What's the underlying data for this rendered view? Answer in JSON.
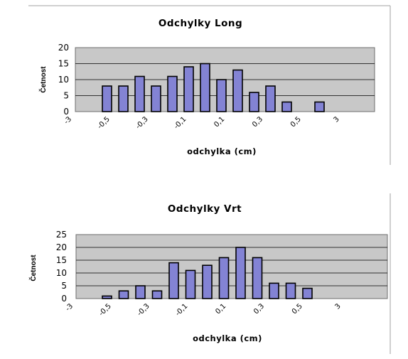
{
  "chart_data": [
    {
      "type": "bar",
      "title": "Odchylky Long",
      "xlabel": "odchylka (cm)",
      "ylabel": "Četnost",
      "ylim": [
        0,
        20
      ],
      "yticks": [
        0,
        5,
        10,
        15,
        20
      ],
      "grid": true,
      "tick_labels": [
        "-3",
        "-0,5",
        "-0,3",
        "-0,1",
        "0,1",
        "0,3",
        "0,5",
        "3"
      ],
      "values": [
        8,
        8,
        11,
        8,
        11,
        14,
        15,
        10,
        13,
        6,
        8,
        3,
        0,
        3
      ]
    },
    {
      "type": "bar",
      "title": "Odchylky Vrt",
      "xlabel": "odchylka (cm)",
      "ylabel": "Četnost",
      "ylim": [
        0,
        25
      ],
      "yticks": [
        0,
        5,
        10,
        15,
        20,
        25
      ],
      "grid": true,
      "tick_labels": [
        "-3",
        "-0,5",
        "-0,3",
        "-0,1",
        "0,1",
        "0,3",
        "0,5",
        "3"
      ],
      "values": [
        1,
        3,
        5,
        3,
        14,
        11,
        13,
        16,
        20,
        16,
        6,
        6,
        4,
        0
      ]
    }
  ],
  "colors": {
    "bar_fill": "#8383d4",
    "bar_stroke": "#000000",
    "plot_background": "#c8c8c8"
  }
}
